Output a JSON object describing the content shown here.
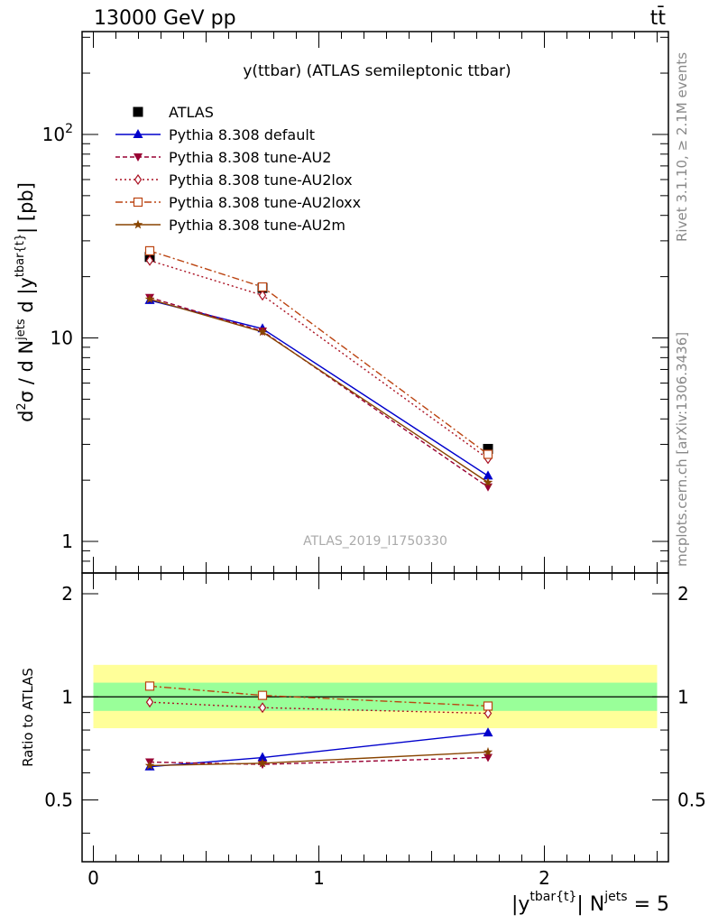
{
  "header": {
    "energy": "13000 GeV pp",
    "process": "tt̄"
  },
  "side_text": {
    "rivet": "Rivet 3.1.10, ≥ 2.1M events",
    "source": "mcplots.cern.ch [arXiv:1306.3436]"
  },
  "chart_data": [
    {
      "type": "line",
      "title": "y(ttbar) (ATLAS semileptonic ttbar)",
      "analysis_id": "ATLAS_2019_I1750330",
      "ylabel": "d²σ / d N^jets d |y^tbar{t}| [pb]",
      "yscale": "log",
      "ylim": [
        0.7,
        320
      ],
      "xlim": [
        -0.05,
        2.55
      ],
      "yticks": [
        1,
        10,
        100
      ],
      "ytick_labels": [
        "1",
        "10",
        "10²"
      ],
      "legend_placement": "top-left",
      "x": [
        0.25,
        0.75,
        1.75
      ],
      "series": [
        {
          "name": "ATLAS",
          "color": "#000000",
          "values": [
            25,
            17.6,
            2.85
          ]
        },
        {
          "name": "Pythia 8.308 default",
          "color": "#0000cc",
          "values": [
            15.3,
            11.1,
            2.1
          ]
        },
        {
          "name": "Pythia 8.308 tune-AU2",
          "color": "#990033",
          "values": [
            15.8,
            10.8,
            1.85
          ]
        },
        {
          "name": "Pythia 8.308 tune-AU2lox",
          "color": "#aa1122",
          "values": [
            24.0,
            16.2,
            2.55
          ]
        },
        {
          "name": "Pythia 8.308 tune-AU2loxx",
          "color": "#bb4411",
          "values": [
            26.8,
            17.8,
            2.68
          ]
        },
        {
          "name": "Pythia 8.308 tune-AU2m",
          "color": "#884400",
          "values": [
            15.5,
            10.7,
            1.95
          ]
        }
      ]
    },
    {
      "type": "line",
      "ylabel": "Ratio to ATLAS",
      "xlabel": "|y^tbar{t}| N^jets = 5",
      "ylim": [
        0.33,
        2.3
      ],
      "xlim": [
        -0.05,
        2.55
      ],
      "yticks": [
        0.5,
        1,
        2
      ],
      "ytick_labels": [
        "0.5",
        "1",
        "2"
      ],
      "xticks": [
        0,
        1,
        2
      ],
      "xtick_labels": [
        "0",
        "1",
        "2"
      ],
      "bands": [
        {
          "name": "total uncertainty",
          "color": "#ffff99",
          "low": 0.81,
          "high": 1.24
        },
        {
          "name": "stat uncertainty",
          "color": "#99ff99",
          "low": 0.91,
          "high": 1.1
        }
      ],
      "x": [
        0.25,
        0.75,
        1.75
      ],
      "series": [
        {
          "name": "Pythia 8.308 default",
          "values": [
            0.625,
            0.665,
            0.785
          ]
        },
        {
          "name": "Pythia 8.308 tune-AU2",
          "values": [
            0.645,
            0.635,
            0.665
          ]
        },
        {
          "name": "Pythia 8.308 tune-AU2lox",
          "values": [
            0.965,
            0.93,
            0.895
          ]
        },
        {
          "name": "Pythia 8.308 tune-AU2loxx",
          "values": [
            1.075,
            1.01,
            0.94
          ]
        },
        {
          "name": "Pythia 8.308 tune-AU2m",
          "values": [
            0.63,
            0.64,
            0.69
          ]
        }
      ]
    }
  ]
}
